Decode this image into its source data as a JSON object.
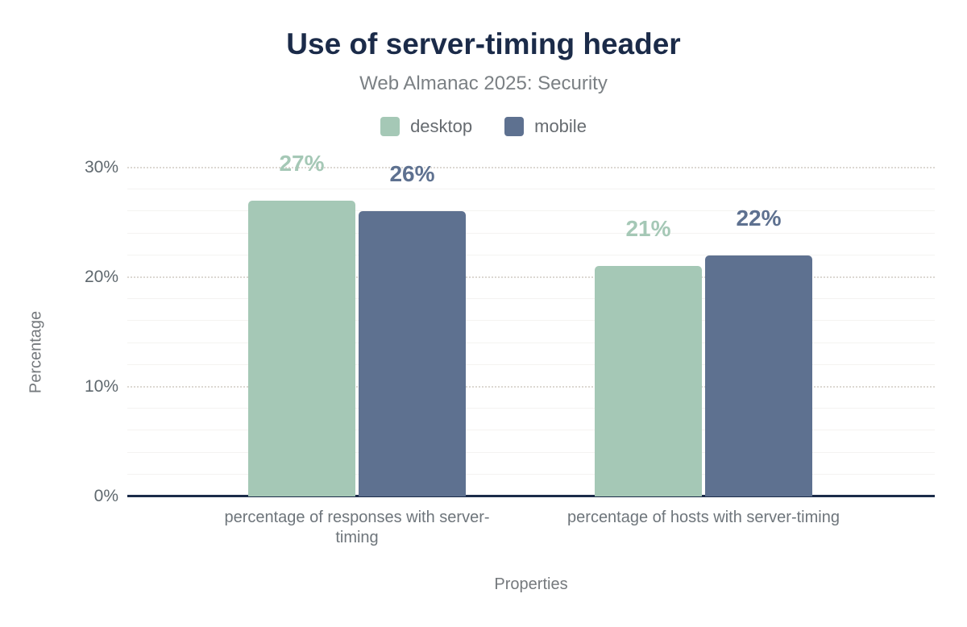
{
  "header": {
    "title": "Use of server-timing header",
    "subtitle": "Web Almanac 2025: Security"
  },
  "legend": {
    "items": [
      {
        "label": "desktop",
        "color": "#a5c8b6"
      },
      {
        "label": "mobile",
        "color": "#5e7190"
      }
    ]
  },
  "axes": {
    "y_title": "Percentage",
    "x_title": "Properties"
  },
  "colors": {
    "title_navy": "#1b2b49",
    "axis_line": "#1b2b49",
    "desktop": "#a5c8b6",
    "mobile": "#5e7190",
    "major_gridline": "#dcd8d2",
    "minor_gridline": "#f4f3f1",
    "text_gray": "#6e757b"
  },
  "chart_data": {
    "type": "bar",
    "title": "Use of server-timing header",
    "subtitle": "Web Almanac 2025: Security",
    "categories": [
      "percentage of responses with server-timing",
      "percentage of hosts with server-timing"
    ],
    "series": [
      {
        "name": "desktop",
        "color": "#a5c8b6",
        "values": [
          27,
          21
        ],
        "value_labels": [
          "27%",
          "21%"
        ]
      },
      {
        "name": "mobile",
        "color": "#5e7190",
        "values": [
          26,
          22
        ],
        "value_labels": [
          "26%",
          "22%"
        ]
      }
    ],
    "xlabel": "Properties",
    "ylabel": "Percentage",
    "ylim": [
      0,
      31
    ],
    "yticks": [
      {
        "value": 0,
        "label": "0%"
      },
      {
        "value": 10,
        "label": "10%"
      },
      {
        "value": 20,
        "label": "20%"
      },
      {
        "value": 30,
        "label": "30%"
      }
    ],
    "grid": {
      "major_every": 10,
      "minor_every": 2,
      "style": "major dotted, minor solid"
    },
    "legend_position": "top"
  }
}
